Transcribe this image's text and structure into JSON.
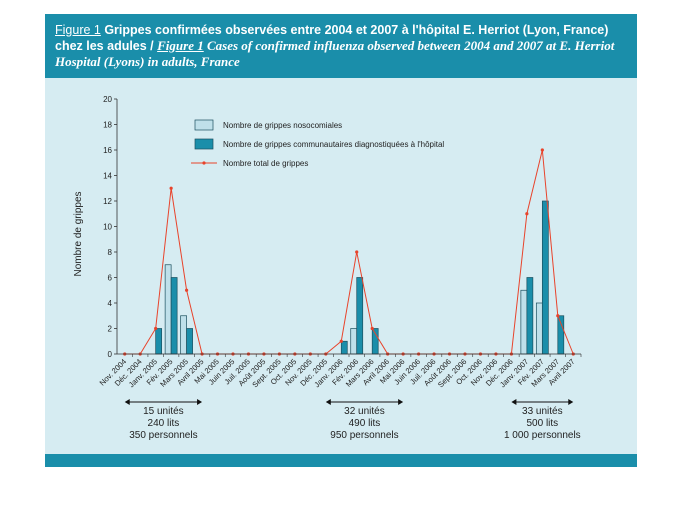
{
  "caption": {
    "fr_ref": "Figure 1",
    "fr_text": " Grippes confirmées observées entre 2004 et 2007 à l'hôpital E. Herriot (Lyon, France) chez les adules / ",
    "en_ref": "Figure 1",
    "en_text": " Cases of confirmed influenza observed between 2004 and 2007 at E. Herriot Hospital (Lyons) in adults, France"
  },
  "colors": {
    "header": "#1a8eaa",
    "panel": "#d6ecf2",
    "nosocomial": "#bfe0ea",
    "community": "#1a8eaa",
    "total_line": "#e8432b"
  },
  "chart_data": {
    "type": "bar",
    "ylabel": "Nombre de grippes",
    "ylim": [
      0,
      20
    ],
    "yticks": [
      0,
      2,
      4,
      6,
      8,
      10,
      12,
      14,
      16,
      18,
      20
    ],
    "grid": false,
    "legend_position": "top-center",
    "categories": [
      "Nov. 2004",
      "Déc. 2004",
      "Janv. 2005",
      "Fév. 2005",
      "Mars 2005",
      "Avril 2005",
      "Mai 2005",
      "Juin 2005",
      "Juil. 2005",
      "Août 2005",
      "Sept. 2005",
      "Oct. 2005",
      "Nov. 2005",
      "Déc. 2005",
      "Janv. 2006",
      "Fév. 2006",
      "Mars 2006",
      "Avril 2006",
      "Mai 2006",
      "Juin 2006",
      "Juil. 2006",
      "Août 2006",
      "Sept. 2006",
      "Oct. 2006",
      "Nov. 2006",
      "Déc. 2006",
      "Janv. 2007",
      "Fév. 2007",
      "Mars 2007",
      "Avril 2007"
    ],
    "series": [
      {
        "name": "Nombre de grippes nosocomiales",
        "kind": "bar",
        "values": [
          0,
          0,
          0,
          7,
          3,
          0,
          0,
          0,
          0,
          0,
          0,
          0,
          0,
          0,
          0,
          2,
          0,
          0,
          0,
          0,
          0,
          0,
          0,
          0,
          0,
          0,
          5,
          4,
          0,
          0
        ]
      },
      {
        "name": "Nombre de grippes communautaires diagnostiquées à l'hôpital",
        "kind": "bar",
        "values": [
          0,
          0,
          2,
          6,
          2,
          0,
          0,
          0,
          0,
          0,
          0,
          0,
          0,
          0,
          1,
          6,
          2,
          0,
          0,
          0,
          0,
          0,
          0,
          0,
          0,
          0,
          6,
          12,
          3,
          0
        ]
      },
      {
        "name": "Nombre total de grippes",
        "kind": "line",
        "values": [
          0,
          0,
          2,
          13,
          5,
          0,
          0,
          0,
          0,
          0,
          0,
          0,
          0,
          0,
          1,
          8,
          2,
          0,
          0,
          0,
          0,
          0,
          0,
          0,
          0,
          0,
          11,
          16,
          3,
          0
        ]
      }
    ],
    "periods": [
      {
        "lines": [
          "15 unités",
          "240 lits",
          "350 personnels"
        ],
        "from": "Nov. 2004",
        "to": "Avril 2005"
      },
      {
        "lines": [
          "32 unités",
          "490 lits",
          "950 personnels"
        ],
        "from": "Déc. 2005",
        "to": "Mai 2006"
      },
      {
        "lines": [
          "33 unités",
          "500 lits",
          "1 000 personnels"
        ],
        "from": "Déc. 2006",
        "to": "Avril 2007"
      }
    ]
  }
}
